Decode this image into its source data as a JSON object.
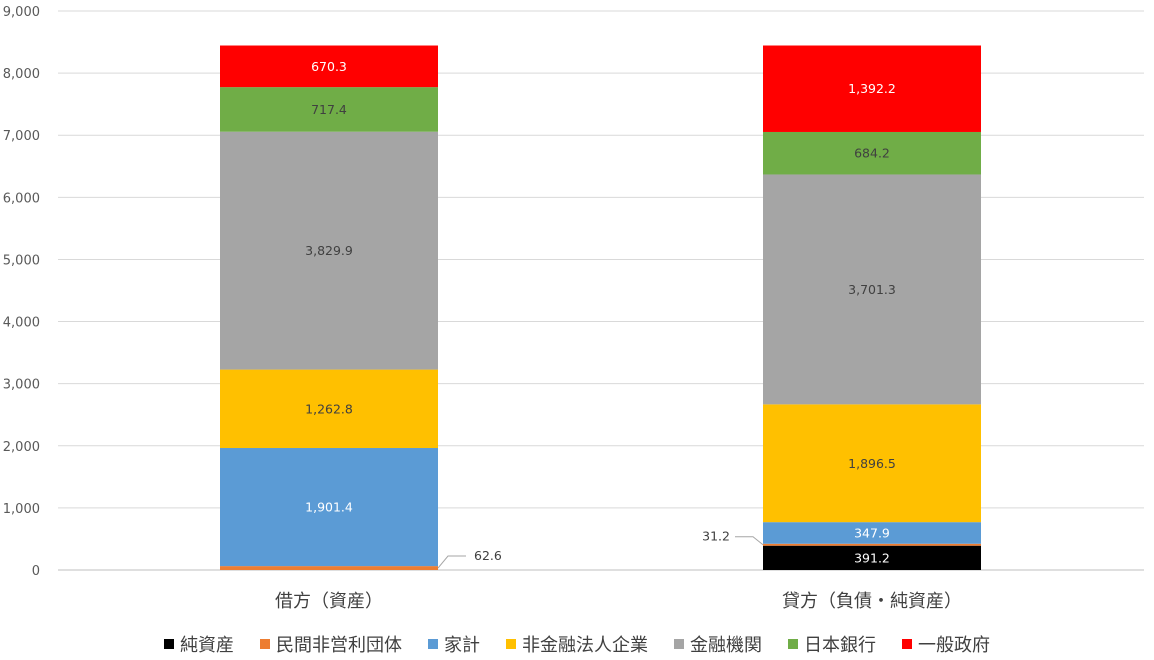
{
  "chart_data": {
    "type": "bar",
    "stacked": true,
    "categories": [
      "借方（資産）",
      "貸方（負債・純資産）"
    ],
    "ylim": [
      0,
      9000
    ],
    "yticks": [
      "0",
      "1,000",
      "2,000",
      "3,000",
      "4,000",
      "5,000",
      "6,000",
      "7,000",
      "8,000",
      "9,000"
    ],
    "grid": true,
    "legend_position": "bottom",
    "series": [
      {
        "name": "純資産",
        "color": "#000000",
        "values": [
          0,
          391.2
        ],
        "labels": [
          "",
          "391.2"
        ],
        "label_color": "#ffffff"
      },
      {
        "name": "民間非営利団体",
        "color": "#ED7D31",
        "values": [
          62.6,
          31.2
        ],
        "labels": [
          "62.6",
          "31.2"
        ],
        "label_color": "#404040",
        "callout": true
      },
      {
        "name": "家計",
        "color": "#5B9BD5",
        "values": [
          1901.4,
          347.9
        ],
        "labels": [
          "1,901.4",
          "347.9"
        ],
        "label_color": "#ffffff"
      },
      {
        "name": "非金融法人企業",
        "color": "#FFC000",
        "values": [
          1262.8,
          1896.5
        ],
        "labels": [
          "1,262.8",
          "1,896.5"
        ],
        "label_color": "#404040"
      },
      {
        "name": "金融機関",
        "color": "#A5A5A5",
        "values": [
          3829.9,
          3701.3
        ],
        "labels": [
          "3,829.9",
          "3,701.3"
        ],
        "label_color": "#404040"
      },
      {
        "name": "日本銀行",
        "color": "#70AD47",
        "values": [
          717.4,
          684.2
        ],
        "labels": [
          "717.4",
          "684.2"
        ],
        "label_color": "#404040"
      },
      {
        "name": "一般政府",
        "color": "#FF0000",
        "values": [
          670.3,
          1392.2
        ],
        "labels": [
          "670.3",
          "1,392.2"
        ],
        "label_color": "#ffffff"
      }
    ]
  }
}
